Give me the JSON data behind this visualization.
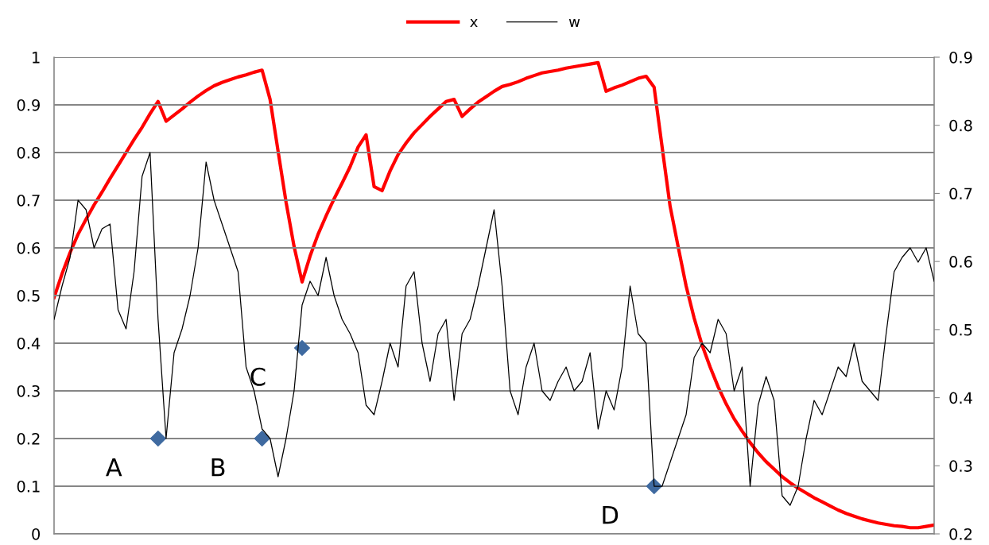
{
  "chart_data": {
    "type": "line",
    "categories": [
      null,
      null,
      null,
      null,
      null,
      null,
      null,
      null,
      null,
      null,
      null,
      null,
      null,
      null,
      null,
      null,
      null,
      null,
      null,
      null,
      null,
      null,
      null,
      null,
      null,
      null,
      null,
      null,
      null,
      null,
      null,
      null,
      null,
      null,
      null,
      null,
      null,
      null,
      null,
      null,
      null,
      null,
      null,
      null,
      null,
      null,
      null,
      null,
      null,
      null,
      null,
      null,
      null,
      null,
      null,
      null,
      null,
      null,
      null,
      null,
      null,
      null,
      null,
      null,
      null,
      null,
      null,
      null,
      null,
      null,
      null,
      null,
      null,
      null,
      null,
      null,
      null,
      null,
      null,
      null,
      null,
      null,
      null,
      null,
      null,
      null,
      null,
      null,
      null,
      null,
      null,
      null,
      null,
      null,
      null,
      null,
      null,
      null,
      null,
      null,
      null,
      null,
      null,
      null,
      null,
      null,
      null,
      null,
      null,
      null,
      null
    ],
    "series": [
      {
        "name": "x",
        "color": "#ff0000",
        "axis": "y2",
        "values": [
          0.547,
          0.582,
          0.613,
          0.64,
          0.662,
          0.683,
          0.702,
          0.722,
          0.741,
          0.76,
          0.779,
          0.797,
          0.817,
          0.835,
          0.806,
          0.815,
          0.824,
          0.834,
          0.843,
          0.851,
          0.858,
          0.863,
          0.867,
          0.871,
          0.874,
          0.878,
          0.881,
          0.838,
          0.762,
          0.687,
          0.622,
          0.57,
          0.608,
          0.64,
          0.667,
          0.692,
          0.715,
          0.739,
          0.768,
          0.786,
          0.71,
          0.704,
          0.733,
          0.757,
          0.774,
          0.789,
          0.801,
          0.813,
          0.824,
          0.835,
          0.838,
          0.813,
          0.824,
          0.834,
          0.842,
          0.85,
          0.857,
          0.86,
          0.864,
          0.869,
          0.873,
          0.877,
          0.879,
          0.881,
          0.884,
          0.886,
          0.888,
          0.89,
          0.892,
          0.85,
          0.855,
          0.859,
          0.864,
          0.869,
          0.872,
          0.856,
          0.768,
          0.681,
          0.622,
          0.564,
          0.517,
          0.477,
          0.445,
          0.416,
          0.391,
          0.369,
          0.351,
          0.334,
          0.319,
          0.306,
          0.295,
          0.284,
          0.275,
          0.267,
          0.26,
          0.253,
          0.247,
          0.241,
          0.235,
          0.23,
          0.226,
          0.222,
          0.219,
          0.216,
          0.214,
          0.212,
          0.211,
          0.209,
          0.209,
          0.211,
          0.213
        ]
      },
      {
        "name": "w",
        "color": "#000000",
        "values": [
          0.45,
          0.52,
          0.58,
          0.7,
          0.68,
          0.6,
          0.64,
          0.65,
          0.47,
          0.43,
          0.55,
          0.75,
          0.8,
          0.45,
          0.2,
          0.38,
          0.43,
          0.5,
          0.6,
          0.78,
          0.7,
          0.65,
          0.6,
          0.55,
          0.35,
          0.3,
          0.22,
          0.2,
          0.12,
          0.2,
          0.3,
          0.48,
          0.53,
          0.5,
          0.58,
          0.5,
          0.45,
          0.42,
          0.38,
          0.27,
          0.25,
          0.32,
          0.4,
          0.35,
          0.52,
          0.55,
          0.4,
          0.32,
          0.42,
          0.45,
          0.28,
          0.42,
          0.45,
          0.52,
          0.6,
          0.68,
          0.52,
          0.3,
          0.25,
          0.35,
          0.4,
          0.3,
          0.28,
          0.32,
          0.35,
          0.3,
          0.32,
          0.38,
          0.22,
          0.3,
          0.26,
          0.35,
          0.52,
          0.42,
          0.4,
          0.1,
          0.1,
          0.15,
          0.2,
          0.25,
          0.37,
          0.4,
          0.38,
          0.45,
          0.42,
          0.3,
          0.35,
          0.1,
          0.27,
          0.33,
          0.28,
          0.08,
          0.06,
          0.1,
          0.2,
          0.28,
          0.25,
          0.3,
          0.35,
          0.33,
          0.4,
          0.32,
          0.3,
          0.28,
          0.42,
          0.55,
          0.58,
          0.6,
          0.57,
          0.6,
          0.53
        ]
      },
      {
        "type": "scatter",
        "color": "#3f6aa0",
        "marker": "diamond",
        "values": [
          null,
          null,
          null,
          null,
          null,
          null,
          null,
          null,
          null,
          null,
          null,
          null,
          null,
          0.2,
          null,
          null,
          null,
          null,
          null,
          null,
          null,
          null,
          null,
          null,
          null,
          null,
          0.2,
          null,
          null,
          null,
          null,
          0.39,
          null,
          null,
          null,
          null,
          null,
          null,
          null,
          null,
          null,
          null,
          null,
          null,
          null,
          null,
          null,
          null,
          null,
          null,
          null,
          null,
          null,
          null,
          null,
          null,
          null,
          null,
          null,
          null,
          null,
          null,
          null,
          null,
          null,
          null,
          null,
          null,
          null,
          null,
          null,
          null,
          null,
          null,
          null,
          0.1,
          null,
          null,
          null,
          null,
          null,
          null,
          null,
          null,
          null,
          null,
          null,
          null,
          null,
          null,
          null,
          null,
          null,
          null,
          null,
          null,
          null,
          null,
          null,
          null,
          null,
          null,
          null,
          null,
          null,
          null,
          null,
          null,
          null,
          null,
          null
        ],
        "value_labels": [
          null,
          null,
          null,
          null,
          null,
          null,
          null,
          null,
          null,
          null,
          null,
          null,
          null,
          "A",
          null,
          null,
          null,
          null,
          null,
          null,
          null,
          null,
          null,
          null,
          null,
          null,
          "B",
          null,
          null,
          null,
          null,
          "C",
          null,
          null,
          null,
          null,
          null,
          null,
          null,
          null,
          null,
          null,
          null,
          null,
          null,
          null,
          null,
          null,
          null,
          null,
          null,
          null,
          null,
          null,
          null,
          null,
          null,
          null,
          null,
          null,
          null,
          null,
          null,
          null,
          null,
          null,
          null,
          null,
          null,
          null,
          null,
          null,
          null,
          null,
          null,
          "D",
          null,
          null,
          null,
          null,
          null,
          null,
          null,
          null,
          null,
          null,
          null,
          null,
          null,
          null,
          null,
          null,
          null,
          null,
          null,
          null,
          null,
          null,
          null,
          null,
          null,
          null,
          null,
          null,
          null,
          null,
          null,
          null,
          null,
          null,
          null
        ]
      }
    ],
    "ylim": [
      0,
      1
    ],
    "yticks": [
      0,
      0.1,
      0.2,
      0.3,
      0.4,
      0.5,
      0.6,
      0.7,
      0.8,
      0.9,
      1
    ],
    "y2lim": [
      0.2,
      0.9
    ],
    "y2ticks": [
      0.2,
      0.3,
      0.4,
      0.5,
      0.6,
      0.7,
      0.8,
      0.9
    ],
    "grid": "y",
    "legend": "top",
    "tick_labels": "y",
    "marker": "none",
    "line_style": "solid"
  }
}
